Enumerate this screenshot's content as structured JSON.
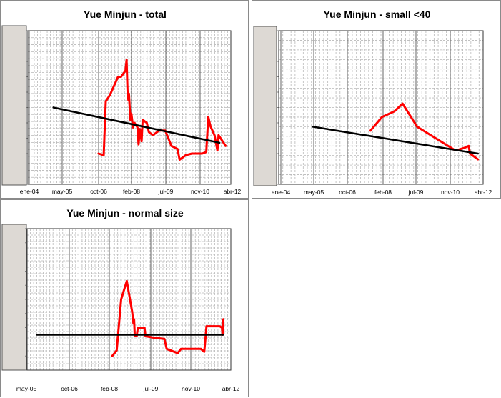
{
  "chart_data": [
    {
      "type": "line",
      "title": "Yue Minjun - total",
      "x_tick_labels": [
        "ene-04",
        "may-05",
        "oct-06",
        "feb-08",
        "jul-09",
        "nov-10",
        "abr-12"
      ],
      "xlim": [
        "2004-01",
        "2012-04"
      ],
      "ylim": [
        0,
        10
      ],
      "grid": true,
      "series": [
        {
          "color": "#ff0000",
          "points": [
            [
              "2006-11-15",
              2.0
            ],
            [
              "2007-02-01",
              1.9
            ],
            [
              "2007-03-01",
              5.4
            ],
            [
              "2007-05-01",
              5.8
            ],
            [
              "2007-07-01",
              6.4
            ],
            [
              "2007-09-01",
              7.0
            ],
            [
              "2007-10-15",
              7.0
            ],
            [
              "2007-12-20",
              7.4
            ],
            [
              "2008-01-05",
              8.1
            ],
            [
              "2008-01-20",
              6.0
            ],
            [
              "2008-02-01",
              5.5
            ],
            [
              "2008-02-10",
              5.9
            ],
            [
              "2008-03-01",
              4.2
            ],
            [
              "2008-03-15",
              4.6
            ],
            [
              "2008-04-10",
              3.7
            ],
            [
              "2008-05-01",
              4.0
            ],
            [
              "2008-06-15",
              3.7
            ],
            [
              "2008-07-01",
              2.6
            ],
            [
              "2008-07-20",
              3.6
            ],
            [
              "2008-08-15",
              2.8
            ],
            [
              "2008-09-01",
              4.2
            ],
            [
              "2008-11-01",
              4.0
            ],
            [
              "2008-12-01",
              3.4
            ],
            [
              "2009-02-01",
              3.2
            ],
            [
              "2009-05-01",
              3.5
            ],
            [
              "2009-08-01",
              3.5
            ],
            [
              "2009-11-01",
              2.5
            ],
            [
              "2010-02-01",
              2.3
            ],
            [
              "2010-03-01",
              1.6
            ],
            [
              "2010-06-01",
              1.9
            ],
            [
              "2010-09-01",
              2.0
            ],
            [
              "2011-02-01",
              2.0
            ],
            [
              "2011-04-01",
              2.1
            ],
            [
              "2011-05-01",
              4.4
            ],
            [
              "2011-06-01",
              3.8
            ],
            [
              "2011-08-01",
              3.2
            ],
            [
              "2011-09-15",
              2.2
            ],
            [
              "2011-10-01",
              3.2
            ],
            [
              "2011-12-15",
              2.7
            ],
            [
              "2012-01-15",
              2.5
            ]
          ]
        },
        {
          "color": "#000000",
          "points": [
            [
              "2005-01-15",
              5.0
            ],
            [
              "2011-10-15",
              2.7
            ]
          ]
        }
      ]
    },
    {
      "type": "line",
      "title": "Yue Minjun - small <40",
      "x_tick_labels": [
        "ene-04",
        "may-05",
        "oct-06",
        "feb-08",
        "jul-09",
        "nov-10",
        "abr-12"
      ],
      "xlim": [
        "2004-01",
        "2012-04"
      ],
      "ylim": [
        0,
        8
      ],
      "grid": true,
      "series": [
        {
          "color": "#ff0000",
          "points": [
            [
              "2007-09-15",
              2.8
            ],
            [
              "2008-03-01",
              3.5
            ],
            [
              "2008-09-01",
              3.8
            ],
            [
              "2009-01-01",
              4.2
            ],
            [
              "2009-08-01",
              3.0
            ],
            [
              "2010-02-01",
              2.6
            ],
            [
              "2010-08-01",
              2.2
            ],
            [
              "2011-02-01",
              1.8
            ],
            [
              "2011-04-01",
              1.8
            ],
            [
              "2011-07-01",
              1.9
            ],
            [
              "2011-09-01",
              2.0
            ],
            [
              "2011-09-20",
              1.6
            ],
            [
              "2012-01-15",
              1.3
            ]
          ]
        },
        {
          "color": "#000000",
          "points": [
            [
              "2005-05-15",
              3.0
            ],
            [
              "2012-01-15",
              1.6
            ]
          ]
        }
      ]
    },
    {
      "type": "line",
      "title": "Yue Minjun - normal size",
      "x_tick_labels": [
        "may-05",
        "oct-06",
        "feb-08",
        "jul-09",
        "nov-10",
        "abr-12"
      ],
      "xlim": [
        "2004-09",
        "2012-05"
      ],
      "ylim": [
        0,
        10
      ],
      "grid": true,
      "series": [
        {
          "color": "#ff0000",
          "points": [
            [
              "2007-11-15",
              1.0
            ],
            [
              "2008-01-15",
              1.4
            ],
            [
              "2008-03-15",
              5.0
            ],
            [
              "2008-06-01",
              6.3
            ],
            [
              "2008-08-15",
              4.1
            ],
            [
              "2008-09-01",
              3.3
            ],
            [
              "2008-09-10",
              3.6
            ],
            [
              "2008-09-20",
              2.4
            ],
            [
              "2008-10-01",
              2.5
            ],
            [
              "2008-10-15",
              2.4
            ],
            [
              "2008-11-01",
              3.0
            ],
            [
              "2009-02-01",
              3.0
            ],
            [
              "2009-02-15",
              2.4
            ],
            [
              "2009-06-01",
              2.3
            ],
            [
              "2009-11-01",
              2.2
            ],
            [
              "2009-12-01",
              1.5
            ],
            [
              "2010-05-01",
              1.2
            ],
            [
              "2010-06-15",
              1.5
            ],
            [
              "2011-01-01",
              1.5
            ],
            [
              "2011-03-15",
              1.5
            ],
            [
              "2011-05-01",
              1.3
            ],
            [
              "2011-06-01",
              3.1
            ],
            [
              "2011-07-01",
              3.1
            ],
            [
              "2011-12-01",
              3.1
            ],
            [
              "2012-01-01",
              3.0
            ],
            [
              "2012-01-10",
              2.5
            ],
            [
              "2012-01-20",
              3.6
            ]
          ]
        },
        {
          "color": "#000000",
          "points": [
            [
              "2005-01-15",
              2.5
            ],
            [
              "2012-01-15",
              2.5
            ]
          ]
        }
      ]
    }
  ]
}
